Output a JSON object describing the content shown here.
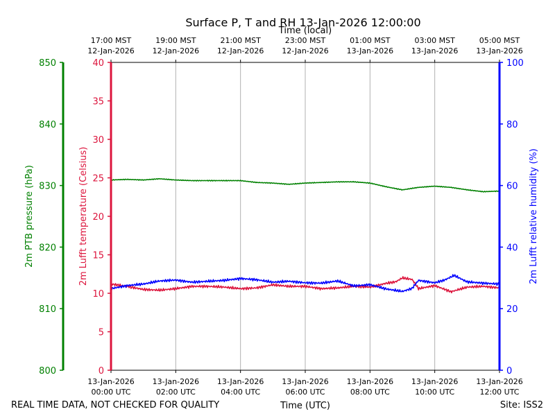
{
  "chart_data": {
    "type": "line",
    "title": "Surface P, T and RH 13-Jan-2026 12:00:00",
    "top_axis_title": "Time (local)",
    "xlabel": "Time (UTC)",
    "footer_left": "REAL TIME DATA, NOT CHECKED FOR QUALITY",
    "footer_right": "Site: ISS2",
    "x_range_hours": [
      0,
      12
    ],
    "x_ticks_utc": [
      {
        "hour": 0,
        "line1": "13-Jan-2026",
        "line2": "00:00 UTC"
      },
      {
        "hour": 2,
        "line1": "13-Jan-2026",
        "line2": "02:00 UTC"
      },
      {
        "hour": 4,
        "line1": "13-Jan-2026",
        "line2": "04:00 UTC"
      },
      {
        "hour": 6,
        "line1": "13-Jan-2026",
        "line2": "06:00 UTC"
      },
      {
        "hour": 8,
        "line1": "13-Jan-2026",
        "line2": "08:00 UTC"
      },
      {
        "hour": 10,
        "line1": "13-Jan-2026",
        "line2": "10:00 UTC"
      },
      {
        "hour": 12,
        "line1": "13-Jan-2026",
        "line2": "12:00 UTC"
      }
    ],
    "x_ticks_local": [
      {
        "hour": 0,
        "line1": "17:00 MST",
        "line2": "12-Jan-2026"
      },
      {
        "hour": 2,
        "line1": "19:00 MST",
        "line2": "12-Jan-2026"
      },
      {
        "hour": 4,
        "line1": "21:00 MST",
        "line2": "12-Jan-2026"
      },
      {
        "hour": 6,
        "line1": "23:00 MST",
        "line2": "12-Jan-2026"
      },
      {
        "hour": 8,
        "line1": "01:00 MST",
        "line2": "13-Jan-2026"
      },
      {
        "hour": 10,
        "line1": "03:00 MST",
        "line2": "13-Jan-2026"
      },
      {
        "hour": 12,
        "line1": "05:00 MST",
        "line2": "13-Jan-2026"
      }
    ],
    "axes": {
      "pressure": {
        "label": "2m PTB pressure (hPa)",
        "range": [
          800,
          850
        ],
        "ticks": [
          800,
          810,
          820,
          830,
          840,
          850
        ],
        "color": "#008000"
      },
      "temperature": {
        "label": "2m Lufft temperature (Celsius)",
        "range": [
          0,
          40
        ],
        "ticks": [
          0,
          5,
          10,
          15,
          20,
          25,
          30,
          35,
          40
        ],
        "color": "#dc143c"
      },
      "humidity": {
        "label": "2m Lufft relative humidity (%)",
        "range": [
          0,
          100
        ],
        "ticks": [
          0,
          20,
          40,
          60,
          80,
          100
        ],
        "color": "#0000ff"
      }
    },
    "series": [
      {
        "name": "2m PTB pressure",
        "axis": "pressure",
        "color": "#008000",
        "x": [
          0,
          0.5,
          1,
          1.5,
          2,
          2.5,
          3,
          3.5,
          4,
          4.5,
          5,
          5.5,
          6,
          6.5,
          7,
          7.5,
          8,
          8.5,
          9,
          9.5,
          10,
          10.5,
          11,
          11.5,
          12
        ],
        "values": [
          830.9,
          831.0,
          830.9,
          831.1,
          830.9,
          830.8,
          830.8,
          830.8,
          830.8,
          830.5,
          830.4,
          830.2,
          830.4,
          830.5,
          830.6,
          830.6,
          830.4,
          829.8,
          829.3,
          829.7,
          829.9,
          829.7,
          829.3,
          829.0,
          829.1
        ]
      },
      {
        "name": "2m Lufft temperature",
        "axis": "temperature",
        "color": "#dc143c",
        "x": [
          0,
          0.5,
          1,
          1.5,
          2,
          2.5,
          3,
          3.5,
          4,
          4.5,
          5,
          5.5,
          6,
          6.5,
          7,
          7.5,
          8,
          8.5,
          8.8,
          9,
          9.3,
          9.5,
          10,
          10.5,
          11,
          11.5,
          12
        ],
        "values": [
          11.2,
          10.9,
          10.5,
          10.4,
          10.6,
          10.9,
          10.9,
          10.8,
          10.6,
          10.7,
          11.1,
          10.9,
          10.9,
          10.6,
          10.7,
          10.9,
          10.8,
          11.3,
          11.5,
          12.0,
          11.8,
          10.6,
          11.0,
          10.2,
          10.8,
          10.9,
          10.7
        ]
      },
      {
        "name": "2m Lufft relative humidity",
        "axis": "humidity",
        "color": "#0000ff",
        "x": [
          0,
          0.5,
          1,
          1.5,
          2,
          2.5,
          3,
          3.5,
          4,
          4.5,
          5,
          5.5,
          6,
          6.5,
          7,
          7.5,
          8,
          8.5,
          9,
          9.3,
          9.5,
          10,
          10.3,
          10.6,
          11,
          11.5,
          12
        ],
        "values": [
          26.5,
          27.5,
          28.0,
          29.0,
          29.3,
          28.6,
          28.9,
          29.2,
          29.8,
          29.4,
          28.6,
          28.9,
          28.4,
          28.3,
          29.0,
          27.4,
          27.8,
          26.4,
          25.6,
          26.6,
          29.2,
          28.4,
          29.3,
          30.8,
          28.7,
          28.3,
          28.0
        ]
      }
    ]
  }
}
